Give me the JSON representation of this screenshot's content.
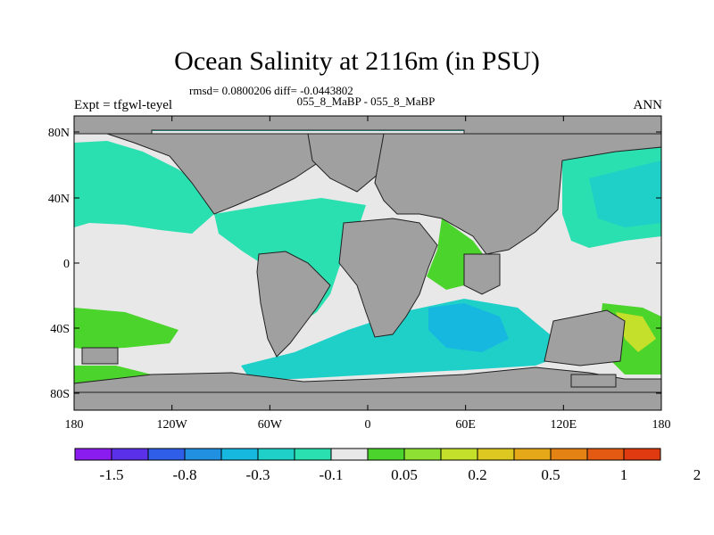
{
  "title": "Ocean Salinity at 2116m (in PSU)",
  "stats": "rmsd= 0.0800206 diff= -0.0443802",
  "comparison": "055_8_MaBP - 055_8_MaBP",
  "experiment": "Expt = tfgwl-teyel",
  "season": "ANN",
  "axes": {
    "lat_labels": [
      "80N",
      "40N",
      "0",
      "40S",
      "80S"
    ],
    "lon_labels": [
      "180",
      "120W",
      "60W",
      "0",
      "60E",
      "120E",
      "180"
    ]
  },
  "colorbar": {
    "colors": [
      "#8a1cf0",
      "#5a30e8",
      "#2f5fe8",
      "#2290e0",
      "#17b8e0",
      "#1fd0c8",
      "#2adfb0",
      "#e8e8e8",
      "#4bd42b",
      "#8ee032",
      "#c4e02a",
      "#dcc820",
      "#e4a818",
      "#e48214",
      "#e45a12",
      "#e03a10"
    ],
    "labels": [
      "-1.5",
      "-0.8",
      "-0.3",
      "-0.1",
      "0.05",
      "0.2",
      "0.5",
      "1",
      "2"
    ],
    "label_indices": [
      1,
      3,
      5,
      7,
      9,
      11,
      13,
      15,
      17
    ]
  },
  "colors": {
    "land": "#a0a0a0",
    "ocean_neutral": "#e8e8e8",
    "teal": "#2adfb0",
    "cyan": "#1fd0c8",
    "light_blue": "#17b8e0",
    "blue": "#2290e0",
    "green": "#4bd42b",
    "light_green": "#8ee032",
    "yellow_green": "#c4e02a"
  }
}
